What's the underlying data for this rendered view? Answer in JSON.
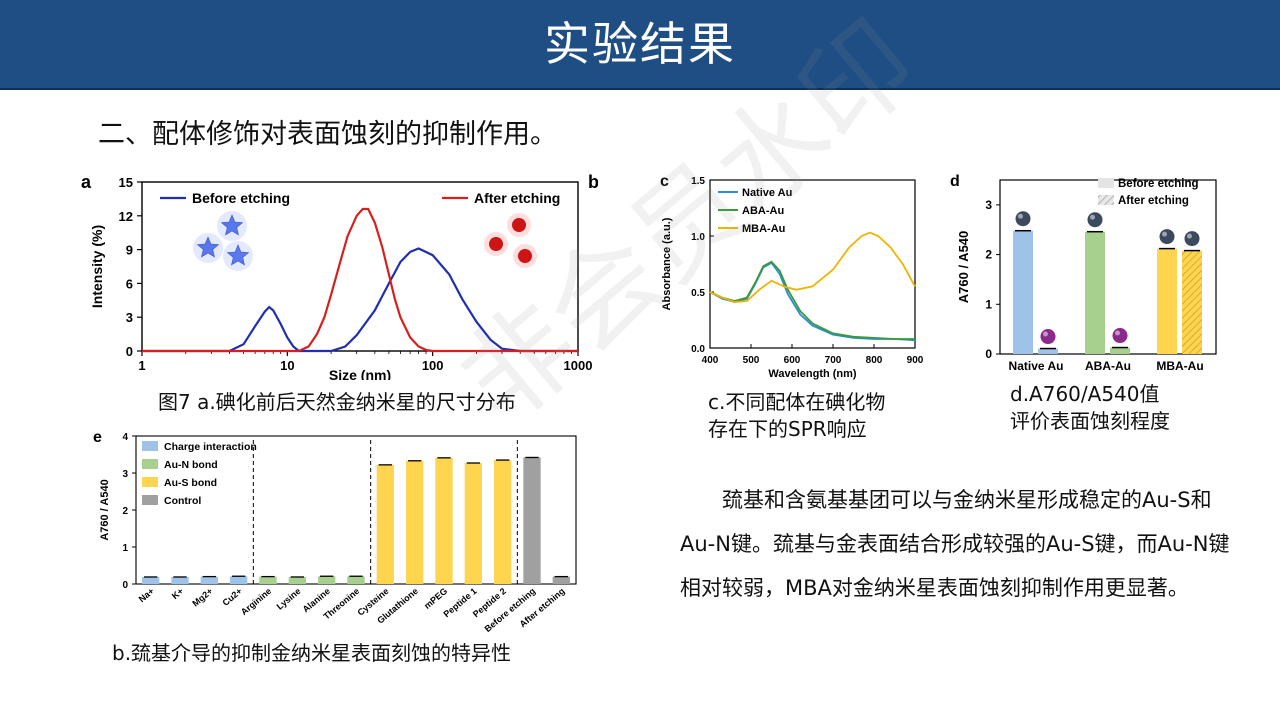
{
  "header": {
    "title": "实验结果"
  },
  "section": {
    "heading": "二、配体修饰对表面蚀刻的抑制作用。"
  },
  "watermark": "非会员水印",
  "captions": {
    "fig_a": "图7 a.碘化前后天然金纳米星的尺寸分布",
    "fig_c_line1": "c.不同配体在碘化物",
    "fig_c_line2": "存在下的SPR响应",
    "fig_d_line1": "d.A760/A540值",
    "fig_d_line2": "评价表面蚀刻程度",
    "fig_b": "b.巯基介导的抑制金纳米星表面刻蚀的特异性"
  },
  "body_text": "巯基和含氨基基团可以与金纳米星形成稳定的Au-S和Au-N键。巯基与金表面结合形成较强的Au-S键，而Au-N键相对较弱，MBA对金纳米星表面蚀刻抑制作用更显著。",
  "chart_data": [
    {
      "panel": "a",
      "type": "line",
      "xlabel": "Size (nm)",
      "ylabel": "Intensity (%)",
      "xscale": "log",
      "xlim": [
        1,
        1000
      ],
      "ylim": [
        0,
        15
      ],
      "xticks": [
        "1",
        "10",
        "100",
        "1000"
      ],
      "yticks": [
        "0",
        "3",
        "6",
        "9",
        "12",
        "15"
      ],
      "legend_position": "top",
      "series": [
        {
          "name": "Before etching",
          "color": "#1f2fb0",
          "x": [
            1,
            4,
            5,
            6,
            7,
            7.5,
            8,
            9,
            10,
            11,
            12,
            14,
            16,
            20,
            25,
            30,
            40,
            50,
            60,
            70,
            80,
            100,
            130,
            160,
            200,
            250,
            300,
            400,
            1000
          ],
          "y": [
            0,
            0,
            0.6,
            2.2,
            3.5,
            3.9,
            3.6,
            2.4,
            1.2,
            0.4,
            0,
            0,
            0,
            0,
            0.4,
            1.4,
            3.6,
            6.0,
            7.9,
            8.8,
            9.1,
            8.5,
            6.8,
            4.6,
            2.6,
            1.0,
            0.2,
            0,
            0
          ]
        },
        {
          "name": "After etching",
          "color": "#d62020",
          "x": [
            1,
            12,
            14,
            16,
            18,
            20,
            23,
            26,
            30,
            33,
            36,
            40,
            45,
            50,
            55,
            60,
            70,
            80,
            90,
            100,
            1000
          ],
          "y": [
            0,
            0,
            0.4,
            1.5,
            3.0,
            5.0,
            7.8,
            10.2,
            12.0,
            12.6,
            12.6,
            11.4,
            9.2,
            6.8,
            4.6,
            3.0,
            1.2,
            0.4,
            0.1,
            0,
            0
          ]
        }
      ]
    },
    {
      "panel": "c",
      "type": "line",
      "xlabel": "Wavelength (nm)",
      "ylabel": "Absorbance (a.u.)",
      "xlim": [
        400,
        900
      ],
      "ylim": [
        0,
        1.5
      ],
      "xticks": [
        "400",
        "500",
        "600",
        "700",
        "800",
        "900"
      ],
      "yticks": [
        "0.0",
        "0.5",
        "1.0",
        "1.5"
      ],
      "legend_position": "top-left",
      "series": [
        {
          "name": "Native Au",
          "color": "#2b8fd0",
          "x": [
            400,
            430,
            460,
            490,
            510,
            530,
            550,
            570,
            590,
            620,
            650,
            700,
            750,
            800,
            850,
            900
          ],
          "y": [
            0.5,
            0.44,
            0.41,
            0.44,
            0.57,
            0.72,
            0.76,
            0.66,
            0.48,
            0.3,
            0.2,
            0.12,
            0.09,
            0.08,
            0.08,
            0.07
          ]
        },
        {
          "name": "ABA-Au",
          "color": "#3a9a3a",
          "x": [
            400,
            430,
            460,
            490,
            510,
            530,
            550,
            570,
            590,
            620,
            650,
            700,
            750,
            800,
            850,
            900
          ],
          "y": [
            0.5,
            0.45,
            0.42,
            0.45,
            0.58,
            0.73,
            0.77,
            0.69,
            0.52,
            0.33,
            0.22,
            0.13,
            0.1,
            0.09,
            0.08,
            0.08
          ]
        },
        {
          "name": "MBA-Au",
          "color": "#f0b400",
          "x": [
            400,
            430,
            460,
            490,
            520,
            550,
            580,
            610,
            650,
            700,
            740,
            770,
            790,
            810,
            840,
            870,
            900
          ],
          "y": [
            0.5,
            0.45,
            0.41,
            0.42,
            0.52,
            0.6,
            0.55,
            0.52,
            0.55,
            0.7,
            0.9,
            1.0,
            1.03,
            1.0,
            0.9,
            0.75,
            0.55
          ]
        }
      ]
    },
    {
      "panel": "d",
      "type": "bar",
      "ylabel": "A760 / A540",
      "ylim": [
        0,
        3.5
      ],
      "yticks": [
        "0",
        "1",
        "2",
        "3"
      ],
      "categories": [
        "Native Au",
        "ABA-Au",
        "MBA-Au"
      ],
      "legend_position": "top-right",
      "series": [
        {
          "name": "Before etching",
          "values": [
            2.48,
            2.46,
            2.12
          ]
        },
        {
          "name": "After etching",
          "values": [
            0.11,
            0.13,
            2.08
          ]
        }
      ],
      "colors": [
        "#9fc2e8",
        "#a7cf8e",
        "#ffd54f"
      ]
    },
    {
      "panel": "e",
      "type": "bar",
      "ylabel": "A760 / A540",
      "ylim": [
        0,
        4
      ],
      "yticks": [
        "0",
        "1",
        "2",
        "3",
        "4"
      ],
      "categories": [
        "Na+",
        "K+",
        "Mg2+",
        "Cu2+",
        "Arginine",
        "Lysine",
        "Alanine",
        "Threonine",
        "Cysteine",
        "Glutathione",
        "mPEG",
        "Peptide 1",
        "Peptide 2",
        "Before etching",
        "After etching"
      ],
      "values": [
        0.19,
        0.19,
        0.2,
        0.21,
        0.2,
        0.19,
        0.21,
        0.21,
        3.22,
        3.33,
        3.41,
        3.27,
        3.35,
        3.42,
        0.2
      ],
      "groups": [
        "charge",
        "charge",
        "charge",
        "charge",
        "aun",
        "aun",
        "aun",
        "aun",
        "aus",
        "aus",
        "aus",
        "aus",
        "aus",
        "control",
        "control"
      ],
      "legend": [
        {
          "key": "charge",
          "name": "Charge interaction",
          "color": "#9fc2e8"
        },
        {
          "key": "aun",
          "name": "Au-N bond",
          "color": "#a7cf8e"
        },
        {
          "key": "aus",
          "name": "Au-S bond",
          "color": "#ffd54f"
        },
        {
          "key": "control",
          "name": "Control",
          "color": "#a0a0a0"
        }
      ],
      "legend_position": "top-left"
    }
  ],
  "panel_labels": {
    "a": "a",
    "b": "b",
    "c": "c",
    "d": "d",
    "e": "e"
  }
}
